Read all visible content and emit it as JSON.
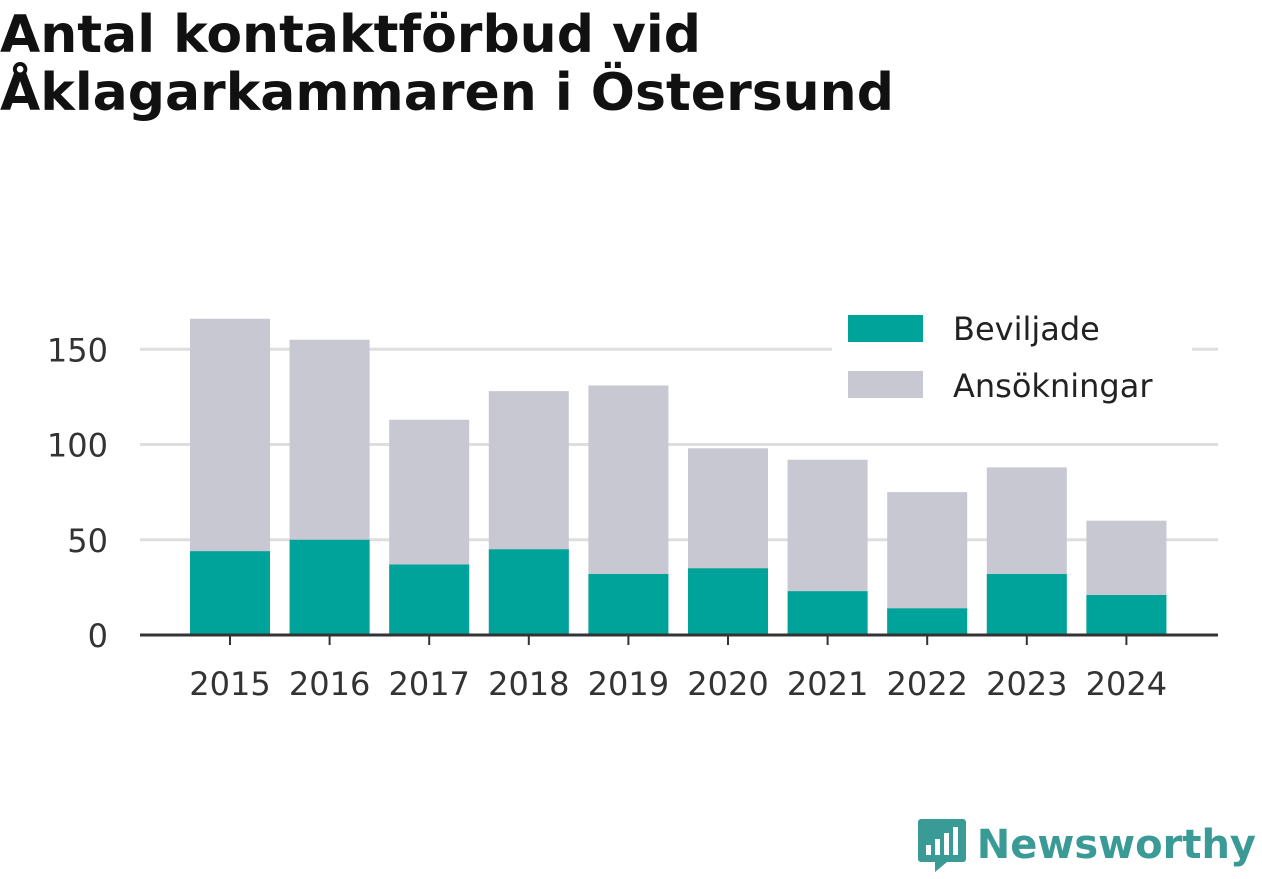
{
  "title_lines": [
    "Antal kontaktförbud vid",
    "Åklagarkammaren i Östersund"
  ],
  "brand": "Newsworthy",
  "colors": {
    "beviljade": "#00a39a",
    "ansokningar": "#c8c8d2",
    "grid": "#dedede",
    "axis": "#333333",
    "brand": "#3a9a96"
  },
  "chart_data": {
    "type": "bar",
    "stacked": "overlay",
    "title": "Antal kontaktförbud vid Åklagarkammaren i Östersund",
    "categories": [
      "2015",
      "2016",
      "2017",
      "2018",
      "2019",
      "2020",
      "2021",
      "2022",
      "2023",
      "2024"
    ],
    "series": [
      {
        "name": "Beviljade",
        "values": [
          44,
          50,
          37,
          45,
          32,
          35,
          23,
          14,
          32,
          21
        ]
      },
      {
        "name": "Ansökningar",
        "values": [
          166,
          155,
          113,
          128,
          131,
          98,
          92,
          75,
          88,
          60
        ]
      }
    ],
    "yticks": [
      0,
      50,
      100,
      150
    ],
    "ylim": [
      0,
      170
    ],
    "grid": true,
    "legend_position": "top-right",
    "xlabel": "",
    "ylabel": ""
  }
}
